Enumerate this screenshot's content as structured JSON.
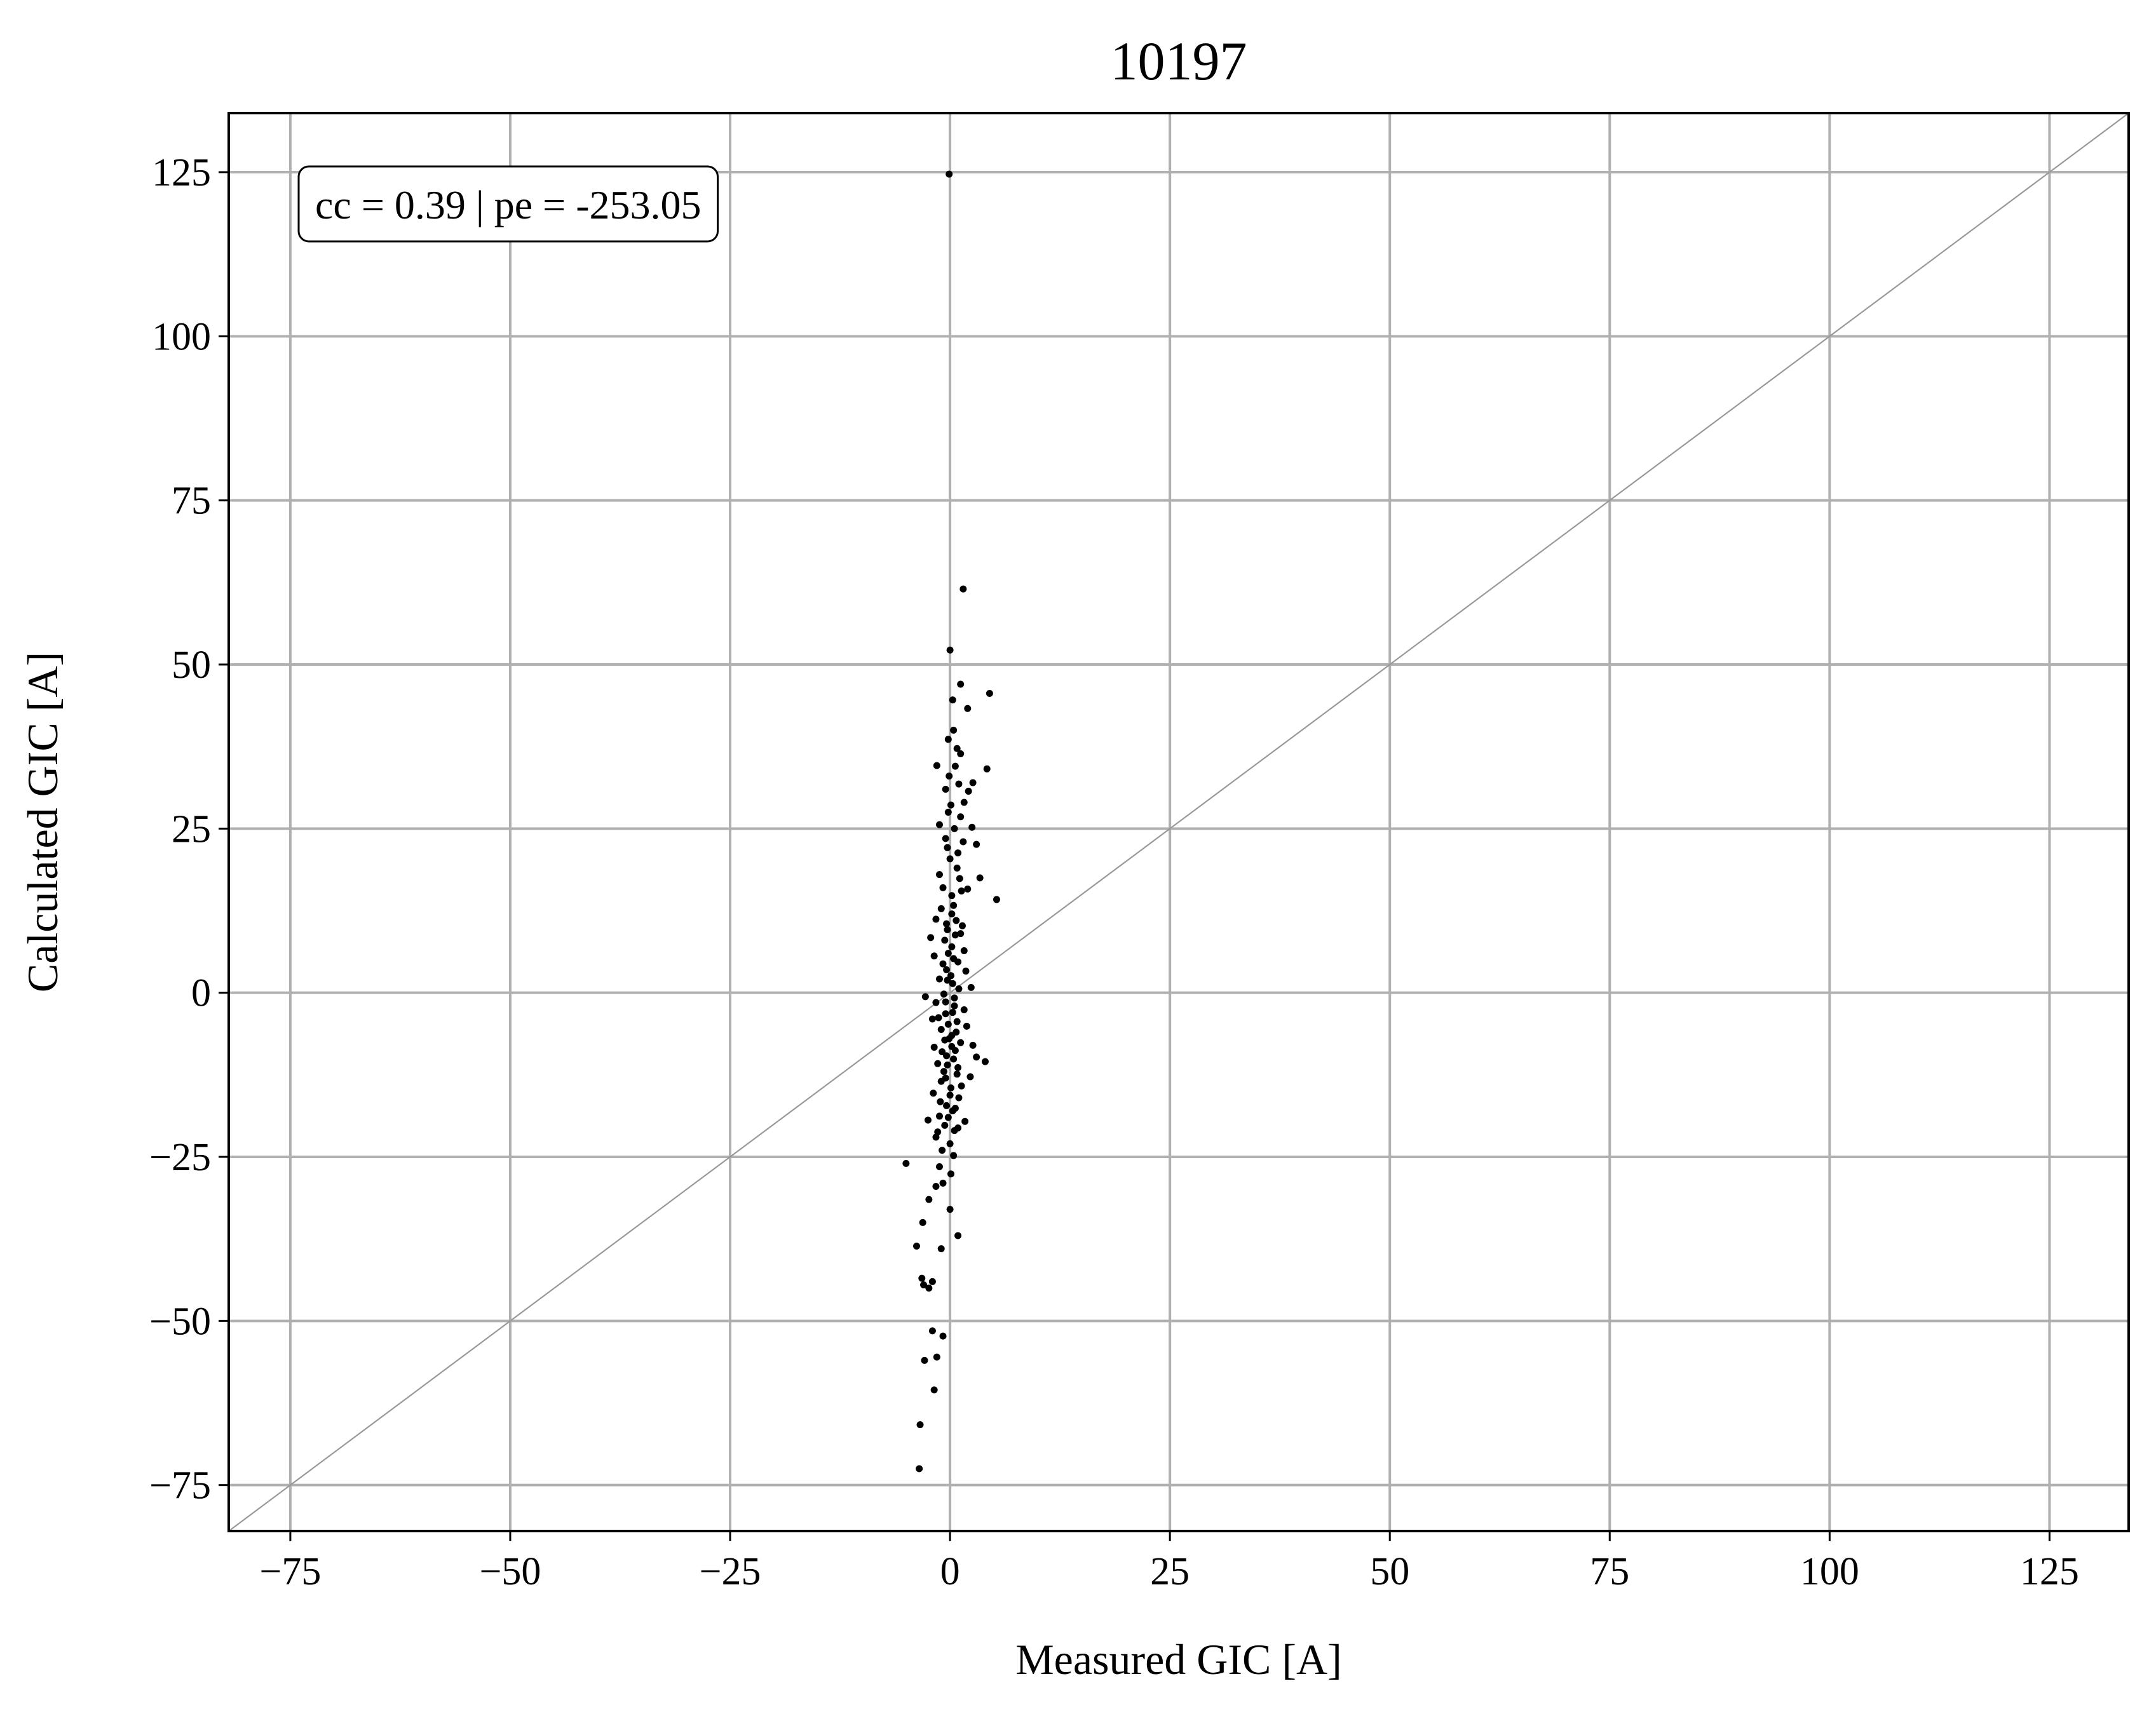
{
  "chart_data": {
    "type": "scatter",
    "title": "10197",
    "xlabel": "Measured GIC [A]",
    "ylabel": "Calculated GIC [A]",
    "xlim": [
      -82,
      134
    ],
    "ylim": [
      -82,
      134
    ],
    "xticks": [
      -75,
      -50,
      -25,
      0,
      25,
      50,
      75,
      100,
      125
    ],
    "yticks": [
      -75,
      -50,
      -25,
      0,
      25,
      50,
      75,
      100,
      125
    ],
    "xtick_labels": [
      "−75",
      "−50",
      "−25",
      "0",
      "25",
      "50",
      "75",
      "100",
      "125"
    ],
    "ytick_labels": [
      "−75",
      "−50",
      "−25",
      "0",
      "25",
      "50",
      "75",
      "100",
      "125"
    ],
    "grid": true,
    "reference_line": {
      "slope": 1,
      "intercept": 0,
      "color": "#999999"
    },
    "annotation": "cc = 0.39 | pe = -253.05",
    "annotation_position": "top-left",
    "marker_color": "#000000",
    "grid_color": "#b0b0b0",
    "series": [
      {
        "points": [
          [
            -0.1,
            124.7
          ],
          [
            1.5,
            61.5
          ],
          [
            0.0,
            52.2
          ],
          [
            1.2,
            47.0
          ],
          [
            4.5,
            45.6
          ],
          [
            0.3,
            44.6
          ],
          [
            2.0,
            43.3
          ],
          [
            -0.2,
            38.6
          ],
          [
            0.8,
            37.2
          ],
          [
            1.2,
            36.4
          ],
          [
            -1.5,
            34.6
          ],
          [
            0.6,
            34.5
          ],
          [
            4.2,
            34.1
          ],
          [
            -0.5,
            31.0
          ],
          [
            2.1,
            30.7
          ],
          [
            0.1,
            28.6
          ],
          [
            -0.2,
            27.5
          ],
          [
            1.2,
            26.8
          ],
          [
            2.5,
            25.2
          ],
          [
            -1.2,
            25.6
          ],
          [
            0.5,
            25.0
          ],
          [
            1.5,
            23.0
          ],
          [
            3.0,
            22.6
          ],
          [
            -0.3,
            22.1
          ],
          [
            0.0,
            20.4
          ],
          [
            0.8,
            19.0
          ],
          [
            1.1,
            17.4
          ],
          [
            3.4,
            17.5
          ],
          [
            5.3,
            14.2
          ],
          [
            -0.8,
            16.0
          ],
          [
            0.2,
            14.8
          ],
          [
            1.3,
            15.5
          ],
          [
            2.0,
            15.8
          ],
          [
            -1.0,
            12.8
          ],
          [
            0.4,
            13.3
          ],
          [
            -1.6,
            11.2
          ],
          [
            0.7,
            11.0
          ],
          [
            -0.3,
            9.6
          ],
          [
            1.2,
            9.0
          ],
          [
            -0.6,
            8.0
          ],
          [
            0.2,
            7.0
          ],
          [
            1.6,
            6.4
          ],
          [
            -1.8,
            5.6
          ],
          [
            0.9,
            4.7
          ],
          [
            -0.4,
            3.5
          ],
          [
            1.8,
            3.3
          ],
          [
            -1.2,
            2.1
          ],
          [
            0.3,
            1.4
          ],
          [
            1.0,
            0.6
          ],
          [
            -0.7,
            -0.2
          ],
          [
            -2.8,
            -0.6
          ],
          [
            -1.6,
            -1.5
          ],
          [
            0.5,
            -2.0
          ],
          [
            1.6,
            -2.6
          ],
          [
            -0.5,
            -3.2
          ],
          [
            -2.0,
            -4.0
          ],
          [
            0.8,
            -4.4
          ],
          [
            1.9,
            -5.1
          ],
          [
            -1.0,
            -5.6
          ],
          [
            0.2,
            -6.5
          ],
          [
            -0.1,
            -7.0
          ],
          [
            1.2,
            -7.6
          ],
          [
            -1.8,
            -8.3
          ],
          [
            0.6,
            -8.8
          ],
          [
            -0.4,
            -9.6
          ],
          [
            3.0,
            -9.8
          ],
          [
            4.0,
            -10.5
          ],
          [
            -1.4,
            -10.8
          ],
          [
            0.9,
            -11.4
          ],
          [
            -0.7,
            -12.0
          ],
          [
            2.3,
            -12.8
          ],
          [
            -1.0,
            -13.5
          ],
          [
            0.1,
            -14.5
          ],
          [
            -1.9,
            -15.3
          ],
          [
            1.0,
            -16.0
          ],
          [
            -0.4,
            -17.2
          ],
          [
            0.3,
            -18.0
          ],
          [
            -1.2,
            -18.8
          ],
          [
            -2.5,
            -19.4
          ],
          [
            1.7,
            -19.6
          ],
          [
            -0.6,
            -20.2
          ],
          [
            0.5,
            -21.0
          ],
          [
            -1.6,
            -22.0
          ],
          [
            0.0,
            -23.0
          ],
          [
            -0.9,
            -24.0
          ],
          [
            0.4,
            -24.8
          ],
          [
            -5.0,
            -26.0
          ],
          [
            -1.2,
            -26.5
          ],
          [
            0.1,
            -27.6
          ],
          [
            -0.8,
            -29.0
          ],
          [
            -1.6,
            -29.5
          ],
          [
            -2.4,
            -31.5
          ],
          [
            0.0,
            -33.0
          ],
          [
            -3.1,
            -35.0
          ],
          [
            0.9,
            -37.0
          ],
          [
            -3.8,
            -38.6
          ],
          [
            -1.0,
            -39.0
          ],
          [
            -3.2,
            -43.5
          ],
          [
            -2.0,
            -44.0
          ],
          [
            -3.0,
            -44.5
          ],
          [
            -2.4,
            -45.0
          ],
          [
            -2.0,
            -51.5
          ],
          [
            -0.8,
            -52.3
          ],
          [
            -1.5,
            -55.5
          ],
          [
            -2.9,
            -56.0
          ],
          [
            -1.8,
            -60.5
          ],
          [
            -3.4,
            -65.8
          ],
          [
            -3.5,
            -72.5
          ],
          [
            0.2,
            12.0
          ],
          [
            -0.4,
            10.5
          ],
          [
            0.6,
            8.8
          ],
          [
            -0.2,
            6.0
          ],
          [
            0.4,
            5.2
          ],
          [
            -0.8,
            4.4
          ],
          [
            0.1,
            2.6
          ],
          [
            -0.3,
            1.9
          ],
          [
            0.5,
            -0.8
          ],
          [
            -0.5,
            -1.4
          ],
          [
            0.3,
            -3.0
          ],
          [
            -0.2,
            -4.8
          ],
          [
            0.7,
            -6.0
          ],
          [
            -0.6,
            -7.2
          ],
          [
            0.2,
            -8.2
          ],
          [
            -0.9,
            -9.0
          ],
          [
            0.4,
            -10.1
          ],
          [
            -0.3,
            -11.0
          ],
          [
            0.8,
            -12.4
          ],
          [
            -0.5,
            -13.0
          ],
          [
            0.0,
            -15.6
          ],
          [
            -1.1,
            -16.6
          ],
          [
            0.6,
            -17.6
          ],
          [
            -0.2,
            -19.0
          ],
          [
            0.9,
            -20.6
          ],
          [
            -1.4,
            -21.2
          ],
          [
            1.3,
            -14.2
          ],
          [
            -1.3,
            -3.8
          ],
          [
            1.4,
            10.2
          ],
          [
            -1.2,
            18.0
          ],
          [
            0.9,
            21.3
          ],
          [
            -0.5,
            23.5
          ],
          [
            1.6,
            29.0
          ],
          [
            -0.1,
            33.0
          ],
          [
            0.4,
            40.0
          ],
          [
            1.0,
            31.8
          ],
          [
            2.6,
            32.0
          ],
          [
            -2.2,
            8.4
          ],
          [
            2.4,
            0.8
          ],
          [
            2.6,
            -8.0
          ]
        ]
      }
    ]
  }
}
